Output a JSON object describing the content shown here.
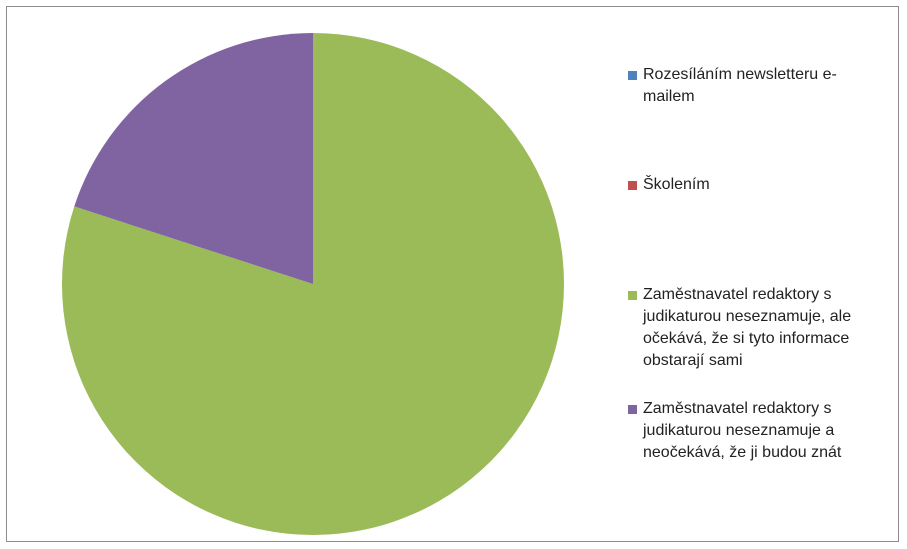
{
  "chart_data": {
    "type": "pie",
    "categories": [
      "Rozesíláním newsletteru e-mailem",
      "Školením",
      "Zaměstnavatel redaktory s judikaturou neseznamuje, ale očekává, že si tyto informace obstarají sami",
      "Zaměstnavatel redaktory s judikaturou neseznamuje a neočekává, že ji budou znát"
    ],
    "values": [
      0,
      0,
      80,
      20
    ],
    "colors": [
      "#4f81bd",
      "#c0504d",
      "#9bbb59",
      "#8064a2"
    ],
    "legend": "right"
  }
}
